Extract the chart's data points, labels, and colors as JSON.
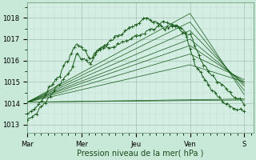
{
  "xlabel": "Pression niveau de la mer( hPa )",
  "background_color": "#c8e8d8",
  "plot_bg_color": "#d4eee4",
  "grid_color_major": "#aacaba",
  "grid_color_minor": "#b8d8c8",
  "line_color": "#1a5c1a",
  "ylim": [
    1012.6,
    1018.7
  ],
  "yticks": [
    1013,
    1014,
    1015,
    1016,
    1017,
    1018
  ],
  "x_day_labels": [
    "Mar",
    "Mer",
    "Jeu",
    "Ven",
    "S"
  ],
  "x_day_positions": [
    0,
    60,
    120,
    180,
    240
  ],
  "xlim": [
    0,
    250
  ]
}
